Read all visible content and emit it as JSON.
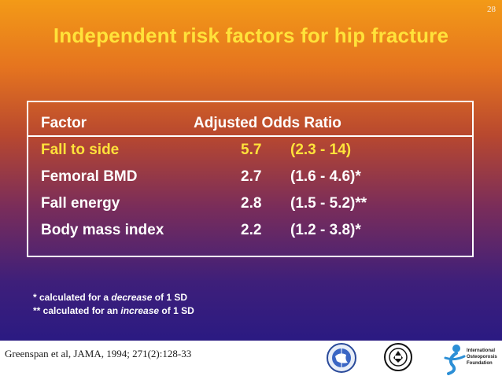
{
  "slide": {
    "page_number": "28",
    "title": "Independent risk factors for hip fracture"
  },
  "table": {
    "headers": [
      "Factor",
      "Adjusted Odds Ratio"
    ],
    "rows": [
      {
        "factor": "Fall to side",
        "odds_ratio": "5.7",
        "ci": "(2.3 - 14)",
        "highlight": true
      },
      {
        "factor": "Femoral BMD",
        "odds_ratio": "2.7",
        "ci": "(1.6 - 4.6)*",
        "highlight": false
      },
      {
        "factor": "Fall energy",
        "odds_ratio": "2.8",
        "ci": "(1.5 - 5.2)**",
        "highlight": false
      },
      {
        "factor": "Body mass index",
        "odds_ratio": "2.2",
        "ci": "(1.2 - 3.8)*",
        "highlight": false
      }
    ]
  },
  "footnotes": [
    {
      "prefix": "*  calculated for a ",
      "emphasis": "decrease",
      "suffix": " of 1 SD"
    },
    {
      "prefix": "** calculated for an ",
      "emphasis": "increase",
      "suffix": " of 1 SD"
    }
  ],
  "footer": {
    "citation": "Greenspan et al, JAMA, 1994; 271(2):128-33",
    "iof_logo_text": [
      "International",
      "Osteoporosis",
      "Foundation"
    ],
    "logos": [
      "globe-emblem-icon",
      "ribbon-seal-icon",
      "iof-figure-icon"
    ]
  },
  "colors": {
    "title": "#ffe23a",
    "highlight_row": "#ffe23a",
    "text": "#ffffff",
    "gradient_top": "#f39a17",
    "gradient_bottom": "#1f1787"
  }
}
